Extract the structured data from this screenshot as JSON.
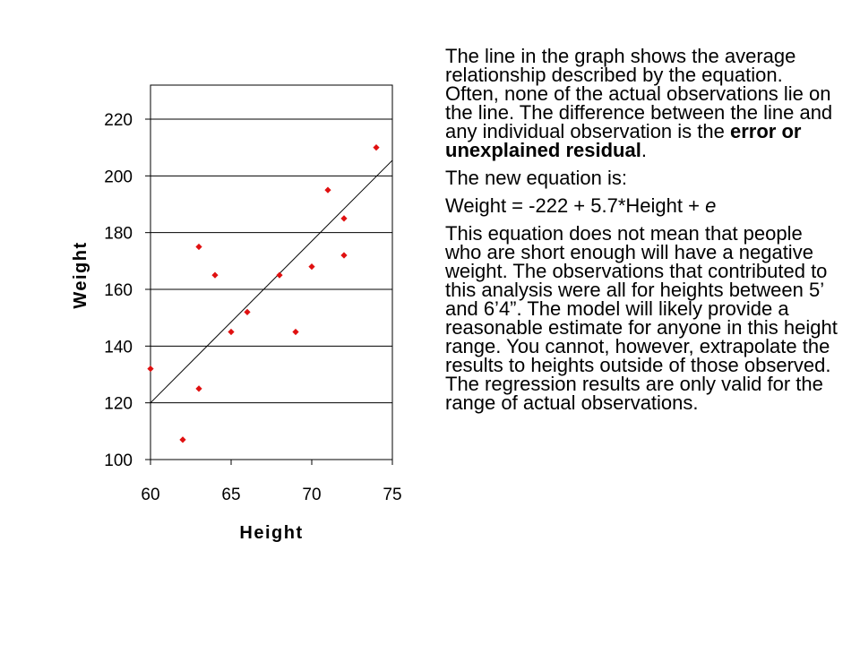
{
  "chart_data": {
    "type": "scatter",
    "xlabel": "Height",
    "ylabel": "Weight",
    "xlim": [
      60,
      75
    ],
    "ylim": [
      100,
      220
    ],
    "x_ticks": [
      60,
      65,
      70,
      75
    ],
    "y_ticks": [
      100,
      120,
      140,
      160,
      180,
      200,
      220
    ],
    "grid": "horizontal",
    "point_color": "#e01010",
    "line_color": "#000000",
    "points": [
      {
        "x": 60,
        "y": 132
      },
      {
        "x": 62,
        "y": 107
      },
      {
        "x": 63,
        "y": 175
      },
      {
        "x": 63,
        "y": 125
      },
      {
        "x": 64,
        "y": 165
      },
      {
        "x": 65,
        "y": 145
      },
      {
        "x": 66,
        "y": 152
      },
      {
        "x": 68,
        "y": 165
      },
      {
        "x": 69,
        "y": 145
      },
      {
        "x": 70,
        "y": 168
      },
      {
        "x": 71,
        "y": 195
      },
      {
        "x": 72,
        "y": 185
      },
      {
        "x": 72,
        "y": 172
      },
      {
        "x": 74,
        "y": 210
      }
    ],
    "fit_line": {
      "intercept": -222,
      "slope": 5.7
    }
  },
  "text": {
    "p1_before": "The line in the graph shows the average relationship described by the equation.  Often, none of the actual observations lie on the line.  The difference between the line and any individual observation is the ",
    "p1_bold": "error or unexplained residual",
    "p1_after": ".",
    "p2": "The new equation is:",
    "p3_main": "Weight = -222 + 5.7*Height + ",
    "p3_italic": "e",
    "p4": "This equation does not mean that people who are short enough will have a negative weight.  The observations that contributed to this analysis were all for heights between 5’ and 6’4”.  The model will likely provide a reasonable estimate for anyone in this height range.  You cannot, however, extrapolate the results to heights outside of those observed.  The regression results are only valid for the range of actual observations."
  }
}
